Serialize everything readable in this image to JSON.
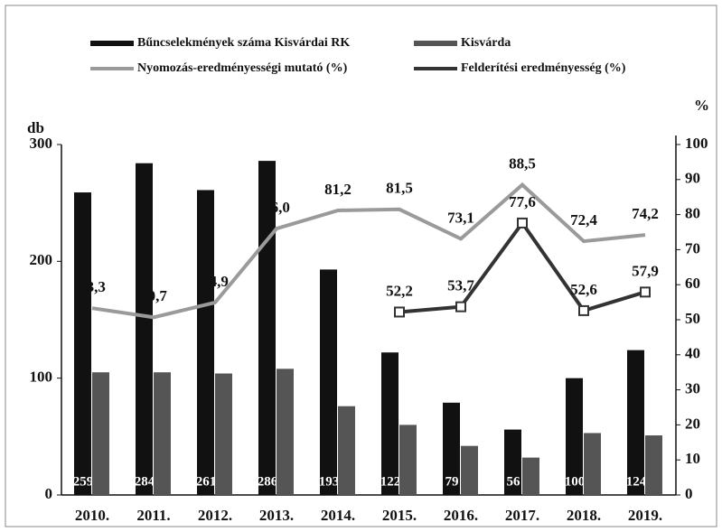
{
  "chart_data": {
    "type": "bar_line",
    "ylabel": "db",
    "y2label": "%",
    "categories": [
      "2010.",
      "2011.",
      "2012.",
      "2013.",
      "2014.",
      "2015.",
      "2016.",
      "2017.",
      "2018.",
      "2019."
    ],
    "series": [
      {
        "name": "Bűncselekmények száma Kisvárdai RK",
        "kind": "bar",
        "color": "#111111",
        "values": [
          259,
          284,
          261,
          286,
          193,
          122,
          79,
          56,
          100,
          124
        ]
      },
      {
        "name": "Kisvárda",
        "kind": "bar",
        "color": "#555555",
        "values": [
          105,
          105,
          104,
          108,
          76,
          60,
          42,
          32,
          53,
          51
        ]
      },
      {
        "name": "Nyomozás-eredményességi mutató (%)",
        "kind": "line",
        "axis": "y2",
        "color": "#9a9a9a",
        "values": [
          53.3,
          50.7,
          54.9,
          76.0,
          81.2,
          81.5,
          73.1,
          88.5,
          72.4,
          74.2
        ],
        "value_labels": [
          "53,3",
          "50,7",
          "54,9",
          "76,0",
          "81,2",
          "81,5",
          "73,1",
          "88,5",
          "72,4",
          "74,2"
        ]
      },
      {
        "name": "Felderítési eredményesség (%)",
        "kind": "line",
        "axis": "y2",
        "color": "#333333",
        "marker": "square",
        "values": [
          null,
          null,
          null,
          null,
          null,
          52.2,
          53.7,
          77.6,
          52.6,
          57.9
        ],
        "value_labels": [
          null,
          null,
          null,
          null,
          null,
          "52,2",
          "53,7",
          "77,6",
          "52,6",
          "57,9"
        ]
      }
    ],
    "ylim": [
      0,
      300
    ],
    "yticks": [
      0,
      100,
      200,
      300
    ],
    "y2lim": [
      0,
      100
    ],
    "y2ticks": [
      0,
      10,
      20,
      30,
      40,
      50,
      60,
      70,
      80,
      90,
      100
    ]
  }
}
